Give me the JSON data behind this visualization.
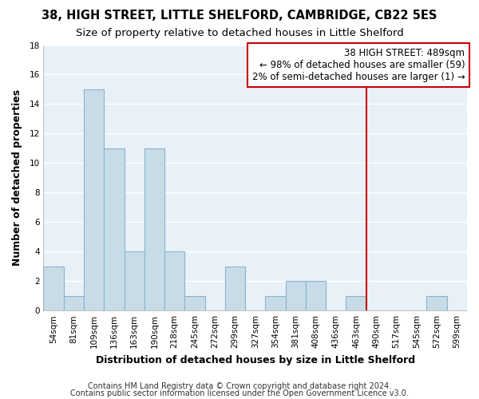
{
  "title": "38, HIGH STREET, LITTLE SHELFORD, CAMBRIDGE, CB22 5ES",
  "subtitle": "Size of property relative to detached houses in Little Shelford",
  "xlabel": "Distribution of detached houses by size in Little Shelford",
  "ylabel": "Number of detached properties",
  "bar_color": "#c8dce8",
  "bar_edge_color": "#8ab4cc",
  "bins": [
    "54sqm",
    "81sqm",
    "109sqm",
    "136sqm",
    "163sqm",
    "190sqm",
    "218sqm",
    "245sqm",
    "272sqm",
    "299sqm",
    "327sqm",
    "354sqm",
    "381sqm",
    "408sqm",
    "436sqm",
    "463sqm",
    "490sqm",
    "517sqm",
    "545sqm",
    "572sqm",
    "599sqm"
  ],
  "counts": [
    3,
    1,
    15,
    11,
    4,
    11,
    4,
    1,
    0,
    3,
    0,
    1,
    2,
    2,
    0,
    1,
    0,
    0,
    0,
    1,
    0
  ],
  "vline_x": 16.0,
  "ylim": [
    0,
    18
  ],
  "yticks": [
    0,
    2,
    4,
    6,
    8,
    10,
    12,
    14,
    16,
    18
  ],
  "annotation_line1": "38 HIGH STREET: 489sqm",
  "annotation_line2": "← 98% of detached houses are smaller (59)",
  "annotation_line3": "2% of semi-detached houses are larger (1) →",
  "annotation_box_color": "#ffffff",
  "annotation_box_edge_color": "#cc0000",
  "vline_color": "#cc0000",
  "footer1": "Contains HM Land Registry data © Crown copyright and database right 2024.",
  "footer2": "Contains public sector information licensed under the Open Government Licence v3.0.",
  "background_color": "#ffffff",
  "plot_bg_color": "#e8f0f8",
  "grid_color": "#ffffff",
  "title_fontsize": 10.5,
  "subtitle_fontsize": 9.5,
  "axis_label_fontsize": 9,
  "tick_fontsize": 7.5,
  "annotation_fontsize": 8.5,
  "footer_fontsize": 7
}
